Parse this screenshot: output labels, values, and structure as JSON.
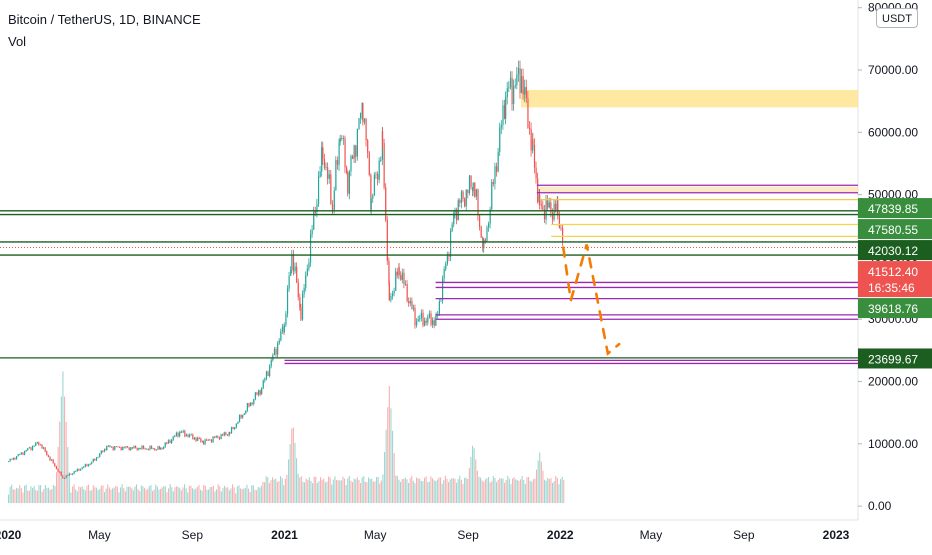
{
  "header": {
    "title": "Bitcoin / TetherUS, 1D, BINANCE",
    "volume_label": "Vol",
    "currency": "USDT"
  },
  "chart_data": {
    "type": "candlestick",
    "title": "Bitcoin / TetherUS, 1D, BINANCE",
    "y_ticks": [
      "0.00",
      "10000.00",
      "20000.00",
      "30000.00",
      "40000.00",
      "50000.00",
      "60000.00",
      "70000.00",
      "80000.00"
    ],
    "y_tick_values": [
      0,
      10000,
      20000,
      30000,
      40000,
      50000,
      60000,
      70000,
      80000
    ],
    "x_ticks": [
      "2020",
      "May",
      "Sep",
      "2021",
      "May",
      "Sep",
      "2022",
      "May",
      "Sep",
      "2023"
    ],
    "ylim": [
      -300,
      80000
    ],
    "price_path": [
      {
        "date": "2020-01-01",
        "price": 7200
      },
      {
        "date": "2020-02-10",
        "price": 10200
      },
      {
        "date": "2020-03-13",
        "price": 4500
      },
      {
        "date": "2020-04-20",
        "price": 7000
      },
      {
        "date": "2020-05-10",
        "price": 9500
      },
      {
        "date": "2020-07-20",
        "price": 9200
      },
      {
        "date": "2020-08-15",
        "price": 11900
      },
      {
        "date": "2020-09-15",
        "price": 10300
      },
      {
        "date": "2020-10-20",
        "price": 11800
      },
      {
        "date": "2020-11-10",
        "price": 15500
      },
      {
        "date": "2020-12-01",
        "price": 19000
      },
      {
        "date": "2020-12-31",
        "price": 29000
      },
      {
        "date": "2021-01-10",
        "price": 40500
      },
      {
        "date": "2021-01-22",
        "price": 31000
      },
      {
        "date": "2021-02-20",
        "price": 57000
      },
      {
        "date": "2021-03-05",
        "price": 48000
      },
      {
        "date": "2021-03-15",
        "price": 60500
      },
      {
        "date": "2021-03-25",
        "price": 52000
      },
      {
        "date": "2021-04-14",
        "price": 64500
      },
      {
        "date": "2021-04-25",
        "price": 49000
      },
      {
        "date": "2021-05-10",
        "price": 58000
      },
      {
        "date": "2021-05-19",
        "price": 33000
      },
      {
        "date": "2021-06-01",
        "price": 38000
      },
      {
        "date": "2021-06-22",
        "price": 30000
      },
      {
        "date": "2021-07-20",
        "price": 29800
      },
      {
        "date": "2021-08-14",
        "price": 47500
      },
      {
        "date": "2021-09-07",
        "price": 52000
      },
      {
        "date": "2021-09-21",
        "price": 41000
      },
      {
        "date": "2021-10-20",
        "price": 66000
      },
      {
        "date": "2021-11-10",
        "price": 69000
      },
      {
        "date": "2021-11-25",
        "price": 57000
      },
      {
        "date": "2021-12-04",
        "price": 48000
      },
      {
        "date": "2021-12-28",
        "price": 47500
      },
      {
        "date": "2022-01-05",
        "price": 41500
      }
    ],
    "volume_peaks": [
      {
        "date": "2020-03-13",
        "value": 1800
      },
      {
        "date": "2021-01-11",
        "value": 1100
      },
      {
        "date": "2021-05-19",
        "value": 1600
      },
      {
        "date": "2021-09-07",
        "value": 800
      },
      {
        "date": "2021-12-04",
        "value": 650
      }
    ],
    "projection": [
      {
        "date": "2022-01-05",
        "price": 41500
      },
      {
        "date": "2022-01-15",
        "price": 33000
      },
      {
        "date": "2022-02-05",
        "price": 42000
      },
      {
        "date": "2022-03-05",
        "price": 24500
      },
      {
        "date": "2022-03-20",
        "price": 26000
      }
    ],
    "horizontal_lines": [
      {
        "from": "2019-12-01",
        "price": 23800,
        "color": "#1b5e20"
      },
      {
        "from": "2019-12-01",
        "price": 42400,
        "color": "#1b5e20"
      },
      {
        "from": "2019-12-01",
        "price": 46800,
        "color": "#1b5e20"
      },
      {
        "from": "2019-12-01",
        "price": 47400,
        "color": "#1b5e20"
      },
      {
        "from": "2019-12-01",
        "price": 40300,
        "color": "#1b5e20"
      },
      {
        "from": "2021-12-20",
        "price": 45200,
        "color": "#f2d64a"
      },
      {
        "from": "2021-12-20",
        "price": 43300,
        "color": "#f2d64a"
      },
      {
        "from": "2021-12-05",
        "price": 49200,
        "color": "#f2c94a"
      },
      {
        "from": "2021-01-01",
        "price": 23400,
        "color": "#9c27b0"
      },
      {
        "from": "2021-01-01",
        "price": 22900,
        "color": "#9c27b0"
      },
      {
        "from": "2021-07-20",
        "price": 35900,
        "color": "#9c27b0"
      },
      {
        "from": "2021-07-20",
        "price": 35100,
        "color": "#9c27b0"
      },
      {
        "from": "2021-07-20",
        "price": 33300,
        "color": "#9c27b0"
      },
      {
        "from": "2021-07-20",
        "price": 30700,
        "color": "#9c27b0"
      },
      {
        "from": "2021-07-20",
        "price": 30000,
        "color": "#9c27b0"
      },
      {
        "from": "2021-12-01",
        "price": 51500,
        "color": "#9c27b0"
      },
      {
        "from": "2021-12-01",
        "price": 50300,
        "color": "#9c27b0"
      }
    ],
    "zones": [
      {
        "from": "2021-11-10",
        "price_top": 66800,
        "price_bottom": 64000,
        "color": "#ffe082"
      },
      {
        "from": "2021-12-05",
        "price_top": 51300,
        "price_bottom": 50400,
        "color": "#ffe0b2"
      }
    ],
    "price_labels": [
      {
        "price": 47839.85,
        "text": "47839.85",
        "color": "#388e3c"
      },
      {
        "price": 47580.55,
        "text": "47580.55",
        "color": "#388e3c"
      },
      {
        "price": 42030.12,
        "text": "42030.12",
        "color": "#1b5e20"
      },
      {
        "price": 41512.4,
        "text": "41512.40",
        "color": "#ef5350",
        "countdown": "16:35:46"
      },
      {
        "price": 39618.76,
        "text": "39618.76",
        "color": "#388e3c"
      },
      {
        "price": 23699.67,
        "text": "23699.67",
        "color": "#1b5e20"
      }
    ],
    "colors": {
      "up": "#26a69a",
      "down": "#ef5350",
      "projection": "#f57c00",
      "axis_text": "#131722"
    }
  }
}
